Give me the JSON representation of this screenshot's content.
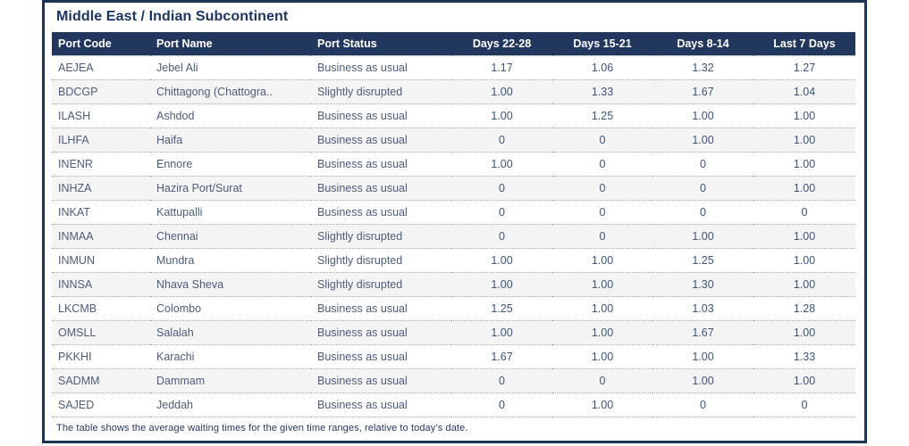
{
  "title": "Middle East / Indian Subcontinent",
  "footnote": "The table shows the average waiting times for the given time ranges, relative to today’s date.",
  "colors": {
    "header_bg": "#22375e",
    "card_border": "#1f3459",
    "body_text": "#4d5c77",
    "value_text": "#3e5477",
    "row_stripe": "#f4f4f4",
    "divider_dotted": "#a3a3a3"
  },
  "chart_data": {
    "type": "table",
    "title": "Middle East / Indian Subcontinent",
    "columns": [
      {
        "label": "Port Code",
        "align": "left"
      },
      {
        "label": "Port Name",
        "align": "left"
      },
      {
        "label": "Port Status",
        "align": "left"
      },
      {
        "label": "Days 22-28",
        "align": "center"
      },
      {
        "label": "Days 15-21",
        "align": "center"
      },
      {
        "label": "Days 8-14",
        "align": "center"
      },
      {
        "label": "Last 7 Days",
        "align": "center"
      }
    ],
    "rows": [
      [
        "AEJEA",
        "Jebel Ali",
        "Business as usual",
        "1.17",
        "1.06",
        "1.32",
        "1.27"
      ],
      [
        "BDCGP",
        "Chittagong (Chattogra..",
        "Slightly disrupted",
        "1.00",
        "1.33",
        "1.67",
        "1.04"
      ],
      [
        "ILASH",
        "Ashdod",
        "Business as usual",
        "1.00",
        "1.25",
        "1.00",
        "1.00"
      ],
      [
        "ILHFA",
        "Haifa",
        "Business as usual",
        "0",
        "0",
        "1.00",
        "1.00"
      ],
      [
        "INENR",
        "Ennore",
        "Business as usual",
        "1.00",
        "0",
        "0",
        "1.00"
      ],
      [
        "INHZA",
        "Hazira Port/Surat",
        "Business as usual",
        "0",
        "0",
        "0",
        "1.00"
      ],
      [
        "INKAT",
        "Kattupalli",
        "Business as usual",
        "0",
        "0",
        "0",
        "0"
      ],
      [
        "INMAA",
        "Chennai",
        "Slightly disrupted",
        "0",
        "0",
        "1.00",
        "1.00"
      ],
      [
        "INMUN",
        "Mundra",
        "Slightly disrupted",
        "1.00",
        "1.00",
        "1.25",
        "1.00"
      ],
      [
        "INNSA",
        "Nhava Sheva",
        "Slightly disrupted",
        "1.00",
        "1.00",
        "1.30",
        "1.00"
      ],
      [
        "LKCMB",
        "Colombo",
        "Business as usual",
        "1.25",
        "1.00",
        "1.03",
        "1.28"
      ],
      [
        "OMSLL",
        "Salalah",
        "Business as usual",
        "1.00",
        "1.00",
        "1.67",
        "1.00"
      ],
      [
        "PKKHI",
        "Karachi",
        "Business as usual",
        "1.67",
        "1.00",
        "1.00",
        "1.33"
      ],
      [
        "SADMM",
        "Dammam",
        "Business as usual",
        "0",
        "0",
        "1.00",
        "1.00"
      ],
      [
        "SAJED",
        "Jeddah",
        "Business as usual",
        "0",
        "1.00",
        "0",
        "0"
      ]
    ]
  }
}
